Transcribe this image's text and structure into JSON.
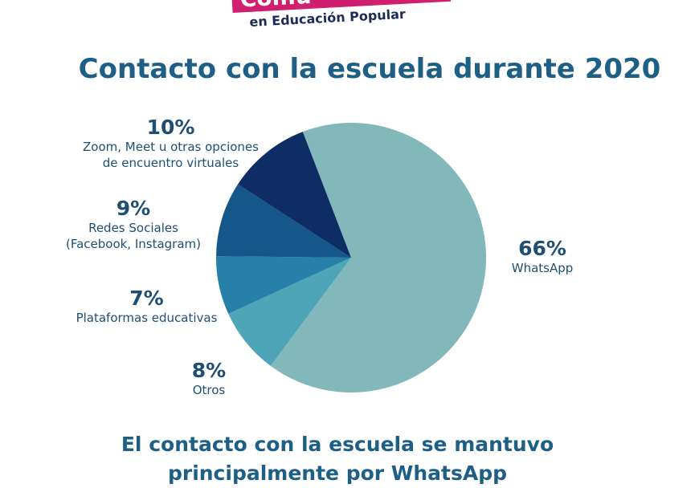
{
  "header": {
    "brand_partial": "Comu",
    "brand_subtitle": "en Educación Popular",
    "brand_color": "#d11f6f"
  },
  "chart_data": {
    "type": "pie",
    "title": "Contacto con la escuela durante 2020",
    "slices": [
      {
        "label": "WhatsApp",
        "percent_label": "66%",
        "value": 66,
        "color": "#82b8ba"
      },
      {
        "label": "Otros",
        "percent_label": "8%",
        "value": 8,
        "color": "#4ea5b7"
      },
      {
        "label": "Plataformas educativas",
        "percent_label": "7%",
        "value": 7,
        "color": "#2680a7"
      },
      {
        "label": "Redes Sociales\n(Facebook, Instagram)",
        "percent_label": "9%",
        "value": 9,
        "color": "#16578a"
      },
      {
        "label": "Zoom, Meet u otras opciones\nde encuentro virtuales",
        "percent_label": "10%",
        "value": 10,
        "color": "#0e2d65"
      }
    ]
  },
  "footer": {
    "text": "El contacto con la escuela se mantuvo\nprincipalmente por WhatsApp"
  }
}
